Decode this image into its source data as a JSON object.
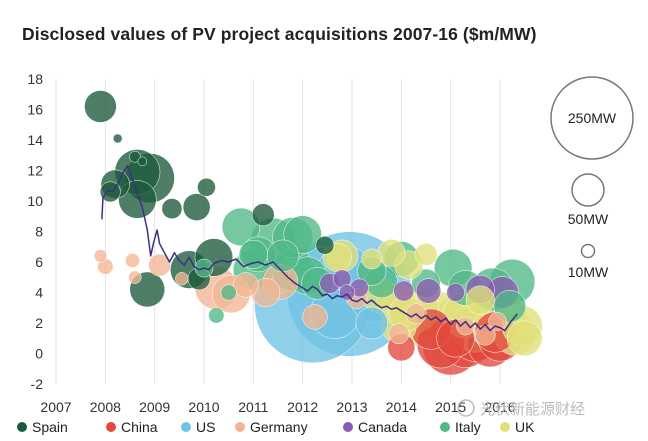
{
  "chart_data": {
    "type": "scatter",
    "title": "Disclosed values of PV project acquisitions 2007-16 ($m/MW)",
    "xlabel": "",
    "ylabel": "",
    "xlim": [
      2007,
      2016.6
    ],
    "ylim": [
      -2,
      18
    ],
    "xticks": [
      "2007",
      "2008",
      "2009",
      "2010",
      "2011",
      "2012",
      "2013",
      "2014",
      "2015",
      "2016"
    ],
    "yticks": [
      "-2",
      "0",
      "2",
      "4",
      "6",
      "8",
      "10",
      "12",
      "14",
      "16",
      "18"
    ],
    "grid": "vertical",
    "legend_position": "bottom",
    "size_legend": [
      {
        "label": "250MW",
        "mw": 250
      },
      {
        "label": "50MW",
        "mw": 50
      },
      {
        "label": "10MW",
        "mw": 10
      }
    ],
    "series": [
      {
        "name": "Spain",
        "color": "#1d5a3c",
        "points": [
          [
            2007.9,
            16.2,
            25
          ],
          [
            2008.25,
            14.1,
            2
          ],
          [
            2008.6,
            12.9,
            3
          ],
          [
            2008.75,
            12.6,
            2
          ],
          [
            2008.2,
            11.1,
            20
          ],
          [
            2008.1,
            10.6,
            10
          ],
          [
            2008.65,
            11.9,
            50
          ],
          [
            2008.9,
            11.5,
            60
          ],
          [
            2008.65,
            10.1,
            35
          ],
          [
            2009.35,
            9.5,
            10
          ],
          [
            2009.85,
            9.6,
            18
          ],
          [
            2010.05,
            10.9,
            8
          ],
          [
            2011.2,
            9.1,
            12
          ],
          [
            2008.85,
            4.2,
            30
          ],
          [
            2009.7,
            5.5,
            35
          ],
          [
            2010.2,
            6.3,
            35
          ],
          [
            2009.9,
            4.9,
            12
          ],
          [
            2012.45,
            7.1,
            8
          ]
        ]
      },
      {
        "name": "China",
        "color": "#e2483c",
        "points": [
          [
            2014.0,
            0.4,
            18
          ],
          [
            2014.8,
            0.6,
            55
          ],
          [
            2015.0,
            0.4,
            75
          ],
          [
            2015.3,
            0.7,
            60
          ],
          [
            2015.5,
            1.1,
            60
          ],
          [
            2015.8,
            0.6,
            50
          ],
          [
            2016.0,
            0.9,
            45
          ],
          [
            2014.6,
            1.6,
            40
          ],
          [
            2015.9,
            1.4,
            40
          ],
          [
            2015.1,
            1.0,
            35
          ]
        ]
      },
      {
        "name": "US",
        "color": "#6fc2e3",
        "points": [
          [
            2012.2,
            3.2,
            330
          ],
          [
            2012.95,
            3.9,
            380
          ],
          [
            2012.65,
            2.6,
            60
          ],
          [
            2013.45,
            3.6,
            55
          ],
          [
            2012.85,
            5.2,
            80
          ],
          [
            2013.4,
            2.0,
            25
          ]
        ]
      },
      {
        "name": "Germany",
        "color": "#f2b694",
        "points": [
          [
            2007.9,
            6.4,
            4
          ],
          [
            2008.0,
            5.7,
            6
          ],
          [
            2008.55,
            6.1,
            5
          ],
          [
            2008.6,
            5.0,
            4
          ],
          [
            2009.1,
            5.8,
            12
          ],
          [
            2009.55,
            4.9,
            4
          ],
          [
            2010.25,
            4.3,
            45
          ],
          [
            2010.55,
            3.9,
            35
          ],
          [
            2010.85,
            4.5,
            15
          ],
          [
            2011.55,
            4.7,
            30
          ],
          [
            2011.25,
            4.0,
            20
          ],
          [
            2012.25,
            2.4,
            15
          ],
          [
            2013.1,
            3.6,
            10
          ],
          [
            2014.3,
            2.6,
            10
          ],
          [
            2015.3,
            1.8,
            8
          ],
          [
            2015.7,
            1.2,
            10
          ],
          [
            2015.95,
            2.1,
            8
          ],
          [
            2013.95,
            1.3,
            10
          ]
        ]
      },
      {
        "name": "Canada",
        "color": "#8a5cb0",
        "points": [
          [
            2012.55,
            4.6,
            10
          ],
          [
            2012.8,
            4.9,
            8
          ],
          [
            2013.15,
            4.3,
            8
          ],
          [
            2012.9,
            4.0,
            6
          ],
          [
            2014.05,
            4.1,
            10
          ],
          [
            2014.55,
            4.1,
            15
          ],
          [
            2015.1,
            4.0,
            8
          ],
          [
            2015.6,
            4.2,
            20
          ],
          [
            2016.05,
            4.0,
            25
          ]
        ]
      },
      {
        "name": "Italy",
        "color": "#4fb887",
        "points": [
          [
            2010.5,
            4.0,
            6
          ],
          [
            2010.25,
            2.5,
            6
          ],
          [
            2011.0,
            5.5,
            40
          ],
          [
            2011.1,
            6.5,
            30
          ],
          [
            2011.4,
            7.4,
            50
          ],
          [
            2011.8,
            7.6,
            40
          ],
          [
            2011.8,
            5.5,
            45
          ],
          [
            2012.0,
            7.8,
            35
          ],
          [
            2012.1,
            5.1,
            35
          ],
          [
            2012.3,
            4.6,
            25
          ],
          [
            2010.75,
            8.3,
            35
          ],
          [
            2011.0,
            6.5,
            20
          ],
          [
            2011.6,
            6.4,
            25
          ],
          [
            2013.6,
            4.7,
            25
          ],
          [
            2013.4,
            5.4,
            20
          ],
          [
            2014.0,
            6.2,
            30
          ],
          [
            2014.5,
            4.6,
            20
          ],
          [
            2015.05,
            5.6,
            35
          ],
          [
            2015.3,
            4.3,
            30
          ],
          [
            2015.85,
            4.2,
            45
          ],
          [
            2016.25,
            4.7,
            50
          ],
          [
            2016.2,
            3.1,
            25
          ],
          [
            2010.0,
            5.6,
            8
          ]
        ]
      },
      {
        "name": "UK",
        "color": "#e0e07a",
        "points": [
          [
            2012.7,
            6.3,
            20
          ],
          [
            2012.8,
            6.4,
            25
          ],
          [
            2013.4,
            6.2,
            10
          ],
          [
            2013.8,
            6.6,
            18
          ],
          [
            2014.15,
            5.8,
            20
          ],
          [
            2014.5,
            6.5,
            12
          ],
          [
            2013.55,
            3.8,
            30
          ],
          [
            2013.9,
            3.3,
            40
          ],
          [
            2014.3,
            2.9,
            50
          ],
          [
            2014.5,
            2.0,
            60
          ],
          [
            2014.8,
            2.4,
            60
          ],
          [
            2015.1,
            1.9,
            70
          ],
          [
            2015.3,
            2.5,
            50
          ],
          [
            2015.5,
            1.7,
            60
          ],
          [
            2015.7,
            2.3,
            55
          ],
          [
            2015.9,
            1.6,
            50
          ],
          [
            2016.1,
            2.4,
            50
          ],
          [
            2016.3,
            1.3,
            45
          ],
          [
            2016.45,
            1.8,
            40
          ],
          [
            2013.95,
            1.8,
            30
          ],
          [
            2014.1,
            2.6,
            30
          ],
          [
            2016.5,
            1.0,
            30
          ],
          [
            2015.6,
            3.5,
            20
          ]
        ]
      }
    ],
    "trend_line": {
      "name": "",
      "color": "#3e2f84",
      "points": [
        [
          2007.93,
          8.8
        ],
        [
          2007.95,
          10.2
        ],
        [
          2008.05,
          10.7
        ],
        [
          2008.15,
          10.6
        ],
        [
          2008.25,
          11.1
        ],
        [
          2008.35,
          11.8
        ],
        [
          2008.45,
          12.3
        ],
        [
          2008.55,
          11.4
        ],
        [
          2008.65,
          10.5
        ],
        [
          2008.75,
          9.6
        ],
        [
          2008.85,
          8.1
        ],
        [
          2008.92,
          6.4
        ],
        [
          2008.98,
          7.3
        ],
        [
          2009.05,
          8.1
        ],
        [
          2009.1,
          7.2
        ],
        [
          2009.2,
          6.6
        ],
        [
          2009.3,
          6.0
        ],
        [
          2009.4,
          6.6
        ],
        [
          2009.5,
          6.1
        ],
        [
          2009.6,
          5.8
        ],
        [
          2009.7,
          6.3
        ],
        [
          2009.8,
          5.7
        ],
        [
          2009.9,
          5.5
        ],
        [
          2010.0,
          5.6
        ],
        [
          2010.1,
          5.5
        ],
        [
          2010.2,
          5.9
        ],
        [
          2010.35,
          6.1
        ],
        [
          2010.5,
          6.0
        ],
        [
          2010.65,
          6.2
        ],
        [
          2010.8,
          5.7
        ],
        [
          2010.95,
          5.9
        ],
        [
          2011.1,
          6.0
        ],
        [
          2011.25,
          5.8
        ],
        [
          2011.4,
          6.0
        ],
        [
          2011.55,
          5.5
        ],
        [
          2011.7,
          5.0
        ],
        [
          2011.85,
          4.6
        ],
        [
          2012.0,
          4.3
        ],
        [
          2012.1,
          4.1
        ],
        [
          2012.2,
          4.4
        ],
        [
          2012.3,
          4.2
        ],
        [
          2012.4,
          3.8
        ],
        [
          2012.5,
          3.9
        ],
        [
          2012.6,
          3.6
        ],
        [
          2012.7,
          3.8
        ],
        [
          2012.8,
          3.7
        ],
        [
          2012.9,
          3.9
        ],
        [
          2013.0,
          3.5
        ],
        [
          2013.1,
          3.4
        ],
        [
          2013.2,
          3.6
        ],
        [
          2013.3,
          3.3
        ],
        [
          2013.4,
          3.5
        ],
        [
          2013.5,
          3.2
        ],
        [
          2013.6,
          3.0
        ],
        [
          2013.7,
          3.1
        ],
        [
          2013.8,
          2.9
        ],
        [
          2013.9,
          3.0
        ],
        [
          2014.0,
          2.8
        ],
        [
          2014.1,
          2.6
        ],
        [
          2014.2,
          2.4
        ],
        [
          2014.3,
          2.6
        ],
        [
          2014.4,
          2.3
        ],
        [
          2014.5,
          2.5
        ],
        [
          2014.6,
          2.2
        ],
        [
          2014.7,
          2.4
        ],
        [
          2014.8,
          2.1
        ],
        [
          2014.9,
          2.3
        ],
        [
          2015.0,
          1.9
        ],
        [
          2015.1,
          2.2
        ],
        [
          2015.2,
          1.8
        ],
        [
          2015.3,
          2.1
        ],
        [
          2015.4,
          1.7
        ],
        [
          2015.5,
          2.0
        ],
        [
          2015.6,
          1.6
        ],
        [
          2015.7,
          1.9
        ],
        [
          2015.8,
          1.5
        ],
        [
          2015.9,
          1.8
        ],
        [
          2016.0,
          1.7
        ],
        [
          2016.1,
          1.5
        ],
        [
          2016.2,
          2.0
        ],
        [
          2016.3,
          2.4
        ],
        [
          2016.35,
          2.6
        ]
      ]
    }
  },
  "watermark": "光伏新能源财经"
}
